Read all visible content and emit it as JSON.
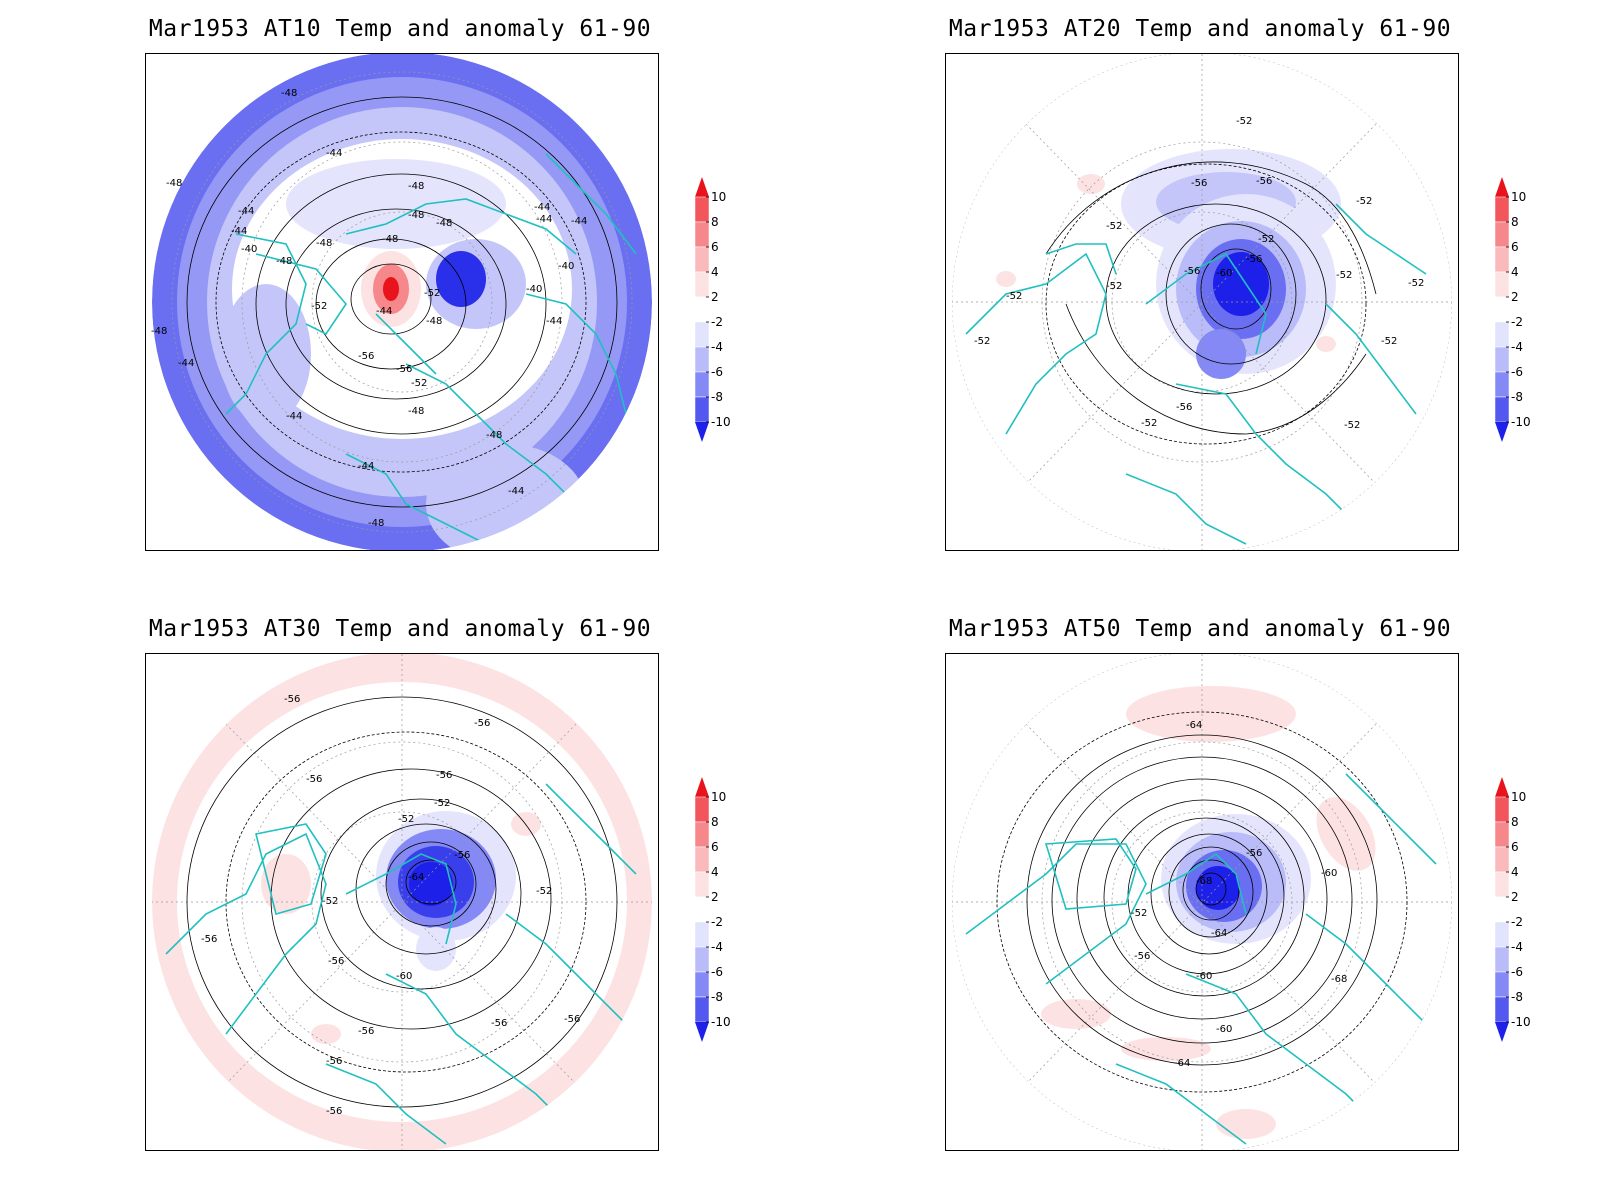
{
  "panels": [
    {
      "title": "Mar1953 AT10 Temp and anomaly 61-90",
      "contour_labels": [
        "-48",
        "-44",
        "-48",
        "-44",
        "-44",
        "-48",
        "-48",
        "-48",
        "-40",
        "-48",
        "-48",
        "-48",
        "-44",
        "-44",
        "-44",
        "-40",
        "-52",
        "-52",
        "-44",
        "-56",
        "-56",
        "-52",
        "-48",
        "-40",
        "-48",
        "-44",
        "-44",
        "-44",
        "-48",
        "-44",
        "-44",
        "-48",
        "-48"
      ],
      "anomaly_pattern": "strong-negative-ring"
    },
    {
      "title": "Mar1953 AT20 Temp and anomaly 61-90",
      "contour_labels": [
        "-52",
        "-56",
        "-56",
        "-52",
        "-52",
        "-52",
        "-60",
        "-56",
        "-56",
        "-52",
        "-52",
        "-52",
        "-52",
        "-52",
        "-52",
        "-52",
        "-56",
        "-52"
      ],
      "anomaly_pattern": "polar-negative"
    },
    {
      "title": "Mar1953 AT30 Temp and anomaly 61-90",
      "contour_labels": [
        "-56",
        "-56",
        "-56",
        "-56",
        "-52",
        "-52",
        "-56",
        "-64",
        "-52",
        "-52",
        "-56",
        "-60",
        "-56",
        "-56",
        "-56",
        "-56",
        "-56",
        "-56"
      ],
      "anomaly_pattern": "polar-negative-positive-ring"
    },
    {
      "title": "Mar1953 AT50 Temp and anomaly 61-90",
      "contour_labels": [
        "-64",
        "-56",
        "-68",
        "-52",
        "-60",
        "-56",
        "-64",
        "-60",
        "-68",
        "-60",
        "-64"
      ],
      "anomaly_pattern": "polar-negative-weak-positive"
    }
  ],
  "colorbar": {
    "labels": [
      "10",
      "8",
      "6",
      "4",
      "2",
      "-2",
      "-4",
      "-6",
      "-8",
      "-10"
    ],
    "colors": [
      "#e8131b",
      "#f2555b",
      "#f6878b",
      "#fab9bb",
      "#fde2e3",
      "#ffffff",
      "#e2e3fd",
      "#b9bcf9",
      "#8589f5",
      "#5358f0",
      "#1d20e9"
    ]
  },
  "colors": {
    "coastline": "#20c0c0",
    "contour": "#000000",
    "grid": "#999999"
  }
}
